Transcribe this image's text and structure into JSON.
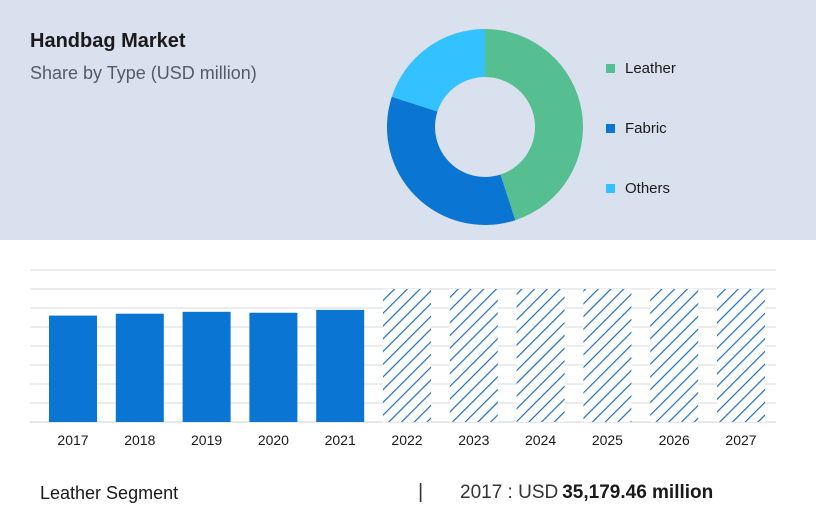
{
  "header": {
    "title": "Handbag Market",
    "subtitle": "Share by Type (USD million)"
  },
  "colors": {
    "leather": "#55bf91",
    "fabric": "#0a75d2",
    "others": "#33c1ff",
    "bar": "#0a75d2",
    "forecast_hatch": "#1f6fbf",
    "grid": "#d6dae0",
    "panel": "#d9e1ee"
  },
  "footer": {
    "segment_label": "Leather Segment",
    "separator": "|",
    "year_prefix": "2017 : USD",
    "value": "35,179.46 million"
  },
  "chart_data": [
    {
      "type": "pie",
      "style": "donut",
      "labels": [
        "Leather",
        "Fabric",
        "Others"
      ],
      "values": [
        45,
        35,
        20
      ],
      "colors": [
        "#55bf91",
        "#0a75d2",
        "#33c1ff"
      ],
      "legend_position": "right"
    },
    {
      "type": "bar",
      "categories": [
        "2017",
        "2018",
        "2019",
        "2020",
        "2021",
        "2022",
        "2023",
        "2024",
        "2025",
        "2026",
        "2027"
      ],
      "values": [
        56,
        57,
        58,
        57.5,
        59,
        70,
        70,
        70,
        70,
        70,
        70
      ],
      "forecast": [
        false,
        false,
        false,
        false,
        false,
        true,
        true,
        true,
        true,
        true,
        true
      ],
      "ylim": [
        0,
        80
      ],
      "grid": true
    }
  ]
}
